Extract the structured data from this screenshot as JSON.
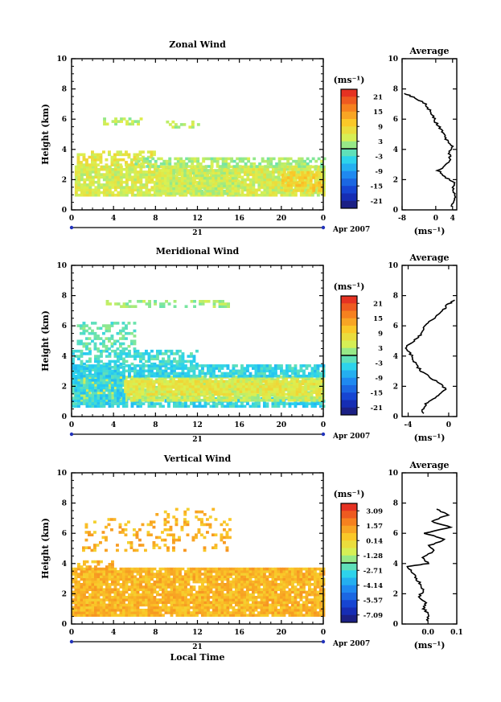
{
  "chart_data": [
    {
      "type": "heatmap",
      "title": "Zonal Wind",
      "ylabel": "Height (km)",
      "xlabel": "",
      "x_ticks": [
        "0",
        "4",
        "8",
        "12",
        "16",
        "20",
        "0"
      ],
      "y_ticks": [
        "0",
        "2",
        "4",
        "6",
        "8",
        "10"
      ],
      "xlim": [
        0,
        24
      ],
      "ylim": [
        0,
        10
      ],
      "date_mark": "21",
      "date_label": "Apr 2007",
      "colorbar": {
        "unit": "(ms⁻¹)",
        "ticks": [
          "21",
          "15",
          "9",
          "3",
          "-3",
          "-9",
          "-15",
          "-21"
        ],
        "range": [
          -24,
          24
        ]
      },
      "regions": [
        {
          "x": [
            0.3,
            24
          ],
          "y": [
            0.9,
            2.9
          ],
          "value": 5,
          "density": 0.88
        },
        {
          "x": [
            0.5,
            8
          ],
          "y": [
            2.9,
            3.9
          ],
          "value": 6,
          "density": 0.6
        },
        {
          "x": [
            6,
            24
          ],
          "y": [
            2.8,
            3.4
          ],
          "value": 2,
          "density": 0.7
        },
        {
          "x": [
            8,
            16
          ],
          "y": [
            1.0,
            2.6
          ],
          "value": 4,
          "density": 0.9
        },
        {
          "x": [
            20,
            24
          ],
          "y": [
            1.2,
            2.4
          ],
          "value": 9,
          "density": 0.75
        },
        {
          "x": [
            3,
            7
          ],
          "y": [
            5.6,
            6.0
          ],
          "value": 3,
          "density": 0.45
        },
        {
          "x": [
            9,
            12
          ],
          "y": [
            5.4,
            5.8
          ],
          "value": 3,
          "density": 0.35
        }
      ],
      "profile": {
        "title": "Average",
        "xlabel": "(ms⁻¹)",
        "x_ticks": [
          "-8",
          "0",
          "4"
        ],
        "xlim": [
          -8,
          5
        ],
        "z": [
          0.2,
          0.6,
          1.0,
          1.4,
          1.8,
          2.2,
          2.6,
          3.0,
          3.4,
          3.8,
          4.2,
          4.6,
          5.0,
          5.4,
          5.8,
          6.2,
          6.6,
          7.0,
          7.4,
          7.7
        ],
        "values": [
          3.5,
          4.3,
          4.5,
          4.2,
          4.5,
          2.0,
          0.6,
          2.5,
          3.4,
          3.2,
          3.9,
          2.6,
          2.1,
          1.0,
          0.0,
          -0.5,
          -1.5,
          -2.5,
          -4.8,
          -7.5
        ]
      }
    },
    {
      "type": "heatmap",
      "title": "Meridional Wind",
      "ylabel": "Height (km)",
      "xlabel": "",
      "x_ticks": [
        "0",
        "4",
        "8",
        "12",
        "16",
        "20",
        "0"
      ],
      "y_ticks": [
        "0",
        "2",
        "4",
        "6",
        "8",
        "10"
      ],
      "xlim": [
        0,
        24
      ],
      "ylim": [
        0,
        10
      ],
      "date_mark": "21",
      "date_label": "Apr 2007",
      "colorbar": {
        "unit": "(ms⁻¹)",
        "ticks": [
          "21",
          "15",
          "9",
          "3",
          "-3",
          "-9",
          "-15",
          "-21"
        ],
        "range": [
          -24,
          24
        ]
      },
      "regions": [
        {
          "x": [
            0,
            24
          ],
          "y": [
            0.6,
            1.2
          ],
          "value": -4,
          "density": 0.7
        },
        {
          "x": [
            0.2,
            24
          ],
          "y": [
            1.0,
            2.6
          ],
          "value": 4,
          "density": 0.9
        },
        {
          "x": [
            0,
            5
          ],
          "y": [
            0.8,
            3.2
          ],
          "value": -4,
          "density": 0.8
        },
        {
          "x": [
            0,
            24
          ],
          "y": [
            2.6,
            3.4
          ],
          "value": -4,
          "density": 0.8
        },
        {
          "x": [
            5,
            24
          ],
          "y": [
            1.4,
            2.4
          ],
          "value": 6,
          "density": 0.9
        },
        {
          "x": [
            0,
            12
          ],
          "y": [
            3.4,
            4.4
          ],
          "value": -3,
          "density": 0.55
        },
        {
          "x": [
            0.5,
            6
          ],
          "y": [
            4.4,
            6.2
          ],
          "value": -1,
          "density": 0.45
        },
        {
          "x": [
            3,
            15
          ],
          "y": [
            7.2,
            7.7
          ],
          "value": 2,
          "density": 0.45
        }
      ],
      "profile": {
        "title": "Average",
        "xlabel": "(ms⁻¹)",
        "x_ticks": [
          "-4",
          "0"
        ],
        "xlim": [
          -4.6,
          0.8
        ],
        "z": [
          0.2,
          0.6,
          1.0,
          1.4,
          1.8,
          2.2,
          2.6,
          3.0,
          3.4,
          3.8,
          4.2,
          4.6,
          5.0,
          5.4,
          5.8,
          6.2,
          6.6,
          7.0,
          7.4,
          7.7
        ],
        "values": [
          -2.5,
          -2.5,
          -2.0,
          -1.0,
          -0.3,
          -0.8,
          -1.9,
          -2.7,
          -3.2,
          -3.5,
          -3.8,
          -4.2,
          -3.4,
          -2.8,
          -2.5,
          -2.0,
          -1.3,
          -0.6,
          -0.1,
          0.6
        ]
      }
    },
    {
      "type": "heatmap",
      "title": "Vertical Wind",
      "ylabel": "Height (km)",
      "xlabel": "Local Time",
      "x_ticks": [
        "0",
        "4",
        "8",
        "12",
        "16",
        "20",
        "0"
      ],
      "y_ticks": [
        "0",
        "2",
        "4",
        "6",
        "8",
        "10"
      ],
      "xlim": [
        0,
        24
      ],
      "ylim": [
        0,
        10
      ],
      "date_mark": "21",
      "date_label": "Apr 2007",
      "colorbar": {
        "unit": "(ms⁻¹)",
        "ticks": [
          "3.09",
          "1.57",
          "0.14",
          "-1.28",
          "-2.71",
          "-4.14",
          "-5.57",
          "-7.09"
        ],
        "range": [
          -7.8,
          3.8
        ]
      },
      "regions": [
        {
          "x": [
            0,
            24
          ],
          "y": [
            0.5,
            3.7
          ],
          "value": 0.9,
          "density": 0.93
        },
        {
          "x": [
            0,
            4
          ],
          "y": [
            3.7,
            4.2
          ],
          "value": 0.9,
          "density": 0.55
        },
        {
          "x": [
            1,
            15
          ],
          "y": [
            4.8,
            7.0
          ],
          "value": 0.9,
          "density": 0.22
        },
        {
          "x": [
            8,
            14
          ],
          "y": [
            7.0,
            7.6
          ],
          "value": 0.9,
          "density": 0.2
        }
      ],
      "profile": {
        "title": "Average",
        "xlabel": "(ms⁻¹)",
        "x_ticks": [
          "0.0",
          "0.1"
        ],
        "xlim": [
          -0.09,
          0.1
        ],
        "z": [
          0.2,
          0.6,
          1.0,
          1.4,
          1.8,
          2.2,
          2.6,
          3.0,
          3.4,
          3.8,
          4.0,
          4.4,
          4.8,
          5.2,
          5.6,
          6.0,
          6.4,
          6.8,
          7.2,
          7.6
        ],
        "values": [
          -0.002,
          0.004,
          -0.015,
          -0.01,
          -0.03,
          -0.018,
          -0.025,
          -0.04,
          -0.055,
          -0.072,
          0.0,
          -0.02,
          0.02,
          0.005,
          0.06,
          -0.01,
          0.08,
          0.01,
          0.07,
          0.03
        ]
      }
    }
  ]
}
